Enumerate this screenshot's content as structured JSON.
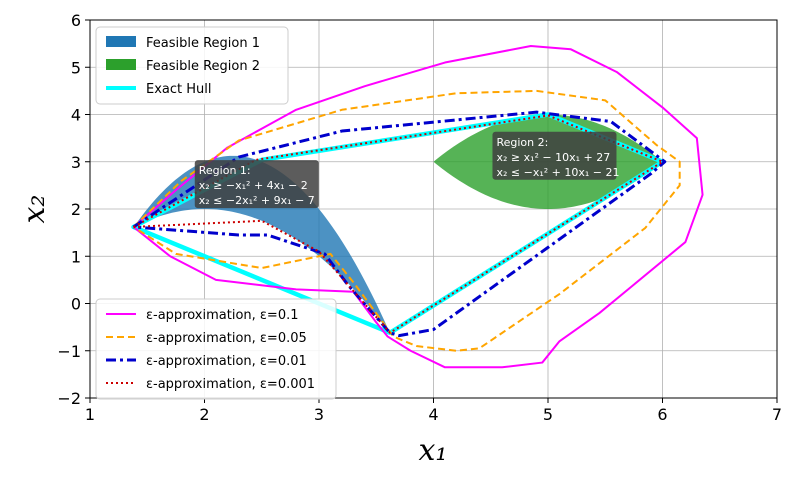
{
  "chart_data": {
    "type": "area",
    "xlim": [
      1,
      7
    ],
    "ylim": [
      -2,
      6
    ],
    "xticks": [
      "1",
      "2",
      "3",
      "4",
      "5",
      "6",
      "7"
    ],
    "yticks": [
      "−2",
      "−1",
      "0",
      "1",
      "2",
      "3",
      "4",
      "5",
      "6"
    ],
    "xlabel": "x₁",
    "ylabel": "x₂",
    "grid": true,
    "regions": [
      {
        "name": "Feasible Region 1",
        "color": "#1f77b4",
        "x_range": [
          1.38,
          3.62
        ],
        "lower": "-x^2 + 4x - 2",
        "upper": "-2x^2 + 9x - 7"
      },
      {
        "name": "Feasible Region 2",
        "color": "#2ca02c",
        "x_range": [
          4.0,
          6.0
        ],
        "lower": "x^2 - 10x + 27",
        "upper": "-x^2 + 10x - 21"
      }
    ],
    "hull": {
      "name": "Exact Hull",
      "color": "#00ffff",
      "points": [
        [
          1.38,
          1.62
        ],
        [
          2.5,
          3.04
        ],
        [
          5.0,
          4.0
        ],
        [
          6.0,
          3.0
        ],
        [
          3.62,
          -0.62
        ]
      ]
    },
    "series": [
      {
        "name": "ε-approximation, ε=0.1",
        "color": "#ff00ff",
        "style": "solid",
        "points": [
          [
            1.38,
            1.62
          ],
          [
            1.75,
            2.4
          ],
          [
            2.2,
            3.3
          ],
          [
            2.8,
            4.1
          ],
          [
            3.4,
            4.6
          ],
          [
            4.1,
            5.1
          ],
          [
            4.85,
            5.45
          ],
          [
            5.2,
            5.38
          ],
          [
            5.6,
            4.9
          ],
          [
            6.0,
            4.15
          ],
          [
            6.3,
            3.5
          ],
          [
            6.35,
            2.3
          ],
          [
            6.2,
            1.3
          ],
          [
            5.75,
            0.4
          ],
          [
            5.45,
            -0.2
          ],
          [
            5.1,
            -0.8
          ],
          [
            4.95,
            -1.25
          ],
          [
            4.6,
            -1.35
          ],
          [
            4.1,
            -1.35
          ],
          [
            3.8,
            -1.0
          ],
          [
            3.6,
            -0.7
          ],
          [
            3.5,
            -0.4
          ],
          [
            3.3,
            0.25
          ],
          [
            2.8,
            0.3
          ],
          [
            2.1,
            0.5
          ],
          [
            1.7,
            1.0
          ],
          [
            1.38,
            1.62
          ]
        ]
      },
      {
        "name": "ε-approximation, ε=0.05",
        "color": "#ffa500",
        "style": "dashed",
        "points": [
          [
            1.38,
            1.62
          ],
          [
            1.8,
            2.6
          ],
          [
            2.3,
            3.45
          ],
          [
            3.2,
            4.1
          ],
          [
            4.2,
            4.45
          ],
          [
            4.9,
            4.5
          ],
          [
            5.5,
            4.3
          ],
          [
            5.95,
            3.35
          ],
          [
            6.15,
            3.0
          ],
          [
            6.15,
            2.5
          ],
          [
            5.85,
            1.6
          ],
          [
            5.1,
            0.2
          ],
          [
            4.4,
            -0.95
          ],
          [
            4.2,
            -1.0
          ],
          [
            3.85,
            -0.9
          ],
          [
            3.65,
            -0.7
          ],
          [
            3.3,
            0.45
          ],
          [
            3.1,
            1.05
          ],
          [
            2.5,
            0.75
          ],
          [
            1.75,
            1.05
          ],
          [
            1.38,
            1.62
          ]
        ]
      },
      {
        "name": "ε-approximation, ε=0.01",
        "color": "#0000cc",
        "style": "dashdot",
        "points": [
          [
            1.38,
            1.62
          ],
          [
            2.3,
            3.1
          ],
          [
            3.2,
            3.65
          ],
          [
            4.9,
            4.05
          ],
          [
            5.55,
            3.85
          ],
          [
            6.02,
            3.0
          ],
          [
            5.9,
            2.75
          ],
          [
            4.0,
            -0.55
          ],
          [
            3.7,
            -0.68
          ],
          [
            3.62,
            -0.62
          ],
          [
            3.25,
            0.4
          ],
          [
            3.05,
            1.05
          ],
          [
            2.55,
            1.45
          ],
          [
            2.3,
            1.45
          ],
          [
            1.38,
            1.62
          ]
        ]
      },
      {
        "name": "ε-approximation, ε=0.001",
        "color": "#cc0000",
        "style": "dotted",
        "points": [
          [
            1.38,
            1.62
          ],
          [
            2.45,
            3.04
          ],
          [
            5.0,
            3.98
          ],
          [
            6.0,
            3.0
          ],
          [
            3.62,
            -0.62
          ],
          [
            3.0,
            1.1
          ],
          [
            2.5,
            1.75
          ],
          [
            1.38,
            1.62
          ]
        ]
      }
    ],
    "annotations": [
      {
        "lines": [
          "Region 1:",
          "x₂ ≥ −x₁² + 4x₁ − 2",
          "x₂ ≤ −2x₁² + 9x₁ − 7"
        ],
        "anchor": [
          1.95,
          2.95
        ],
        "bg": "#404040"
      },
      {
        "lines": [
          "Region 2:",
          "x₂ ≥ x₁² − 10x₁ + 27",
          "x₂ ≤ −x₁² + 10x₁ − 21"
        ],
        "anchor": [
          4.55,
          3.55
        ],
        "bg": "#404040"
      }
    ],
    "legend_top": {
      "placement": "top-left",
      "items": [
        "Feasible Region 1",
        "Feasible Region 2",
        "Exact Hull"
      ]
    },
    "legend_bottom": {
      "placement": "bottom-left",
      "items": [
        "ε-approximation, ε=0.1",
        "ε-approximation, ε=0.05",
        "ε-approximation, ε=0.01",
        "ε-approximation, ε=0.001"
      ]
    }
  }
}
